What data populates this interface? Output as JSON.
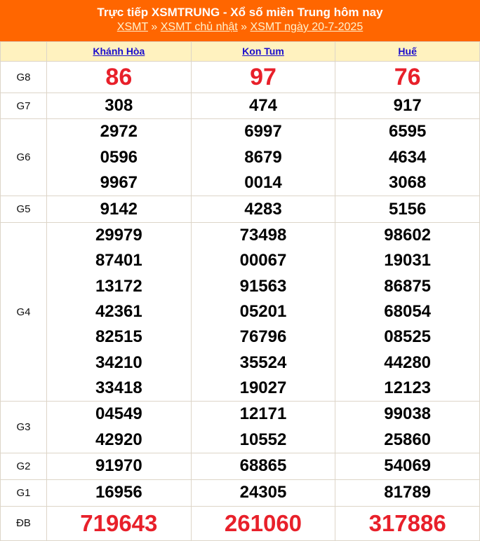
{
  "header": {
    "title": "Trực tiếp XSMTRUNG - Xổ số miền Trung hôm nay",
    "breadcrumb": [
      "XSMT",
      "XSMT chủ nhật",
      "XSMT ngày 20-7-2025"
    ],
    "separator": "»"
  },
  "colors": {
    "header_bg": "#ff6600",
    "column_header_bg": "#fff2bf",
    "highlight": "#e8202a"
  },
  "provinces": [
    "Khánh Hòa",
    "Kon Tum",
    "Huế"
  ],
  "prizes": [
    {
      "label": "G8",
      "cls": "g8",
      "h": 45,
      "results": [
        [
          "86"
        ],
        [
          "97"
        ],
        [
          "76"
        ]
      ]
    },
    {
      "label": "G7",
      "h": 37,
      "results": [
        [
          "308"
        ],
        [
          "474"
        ],
        [
          "917"
        ]
      ]
    },
    {
      "label": "G6",
      "h": 109,
      "results": [
        [
          "2972",
          "0596",
          "9967"
        ],
        [
          "6997",
          "8679",
          "0014"
        ],
        [
          "6595",
          "4634",
          "3068"
        ]
      ]
    },
    {
      "label": "G5",
      "h": 38,
      "results": [
        [
          "9142"
        ],
        [
          "4283"
        ],
        [
          "5156"
        ]
      ]
    },
    {
      "label": "G4",
      "h": 255,
      "results": [
        [
          "29979",
          "87401",
          "13172",
          "42361",
          "82515",
          "34210",
          "33418"
        ],
        [
          "73498",
          "00067",
          "91563",
          "05201",
          "76796",
          "35524",
          "19027"
        ],
        [
          "98602",
          "19031",
          "86875",
          "68054",
          "08525",
          "44280",
          "12123"
        ]
      ]
    },
    {
      "label": "G3",
      "h": 74,
      "results": [
        [
          "04549",
          "42920"
        ],
        [
          "12171",
          "10552"
        ],
        [
          "99038",
          "25860"
        ]
      ]
    },
    {
      "label": "G2",
      "h": 37,
      "results": [
        [
          "91970"
        ],
        [
          "68865"
        ],
        [
          "54069"
        ]
      ]
    },
    {
      "label": "G1",
      "h": 38,
      "results": [
        [
          "16956"
        ],
        [
          "24305"
        ],
        [
          "81789"
        ]
      ]
    },
    {
      "label": "ĐB",
      "cls": "db",
      "h": 49,
      "results": [
        [
          "719643"
        ],
        [
          "261060"
        ],
        [
          "317886"
        ]
      ]
    }
  ]
}
